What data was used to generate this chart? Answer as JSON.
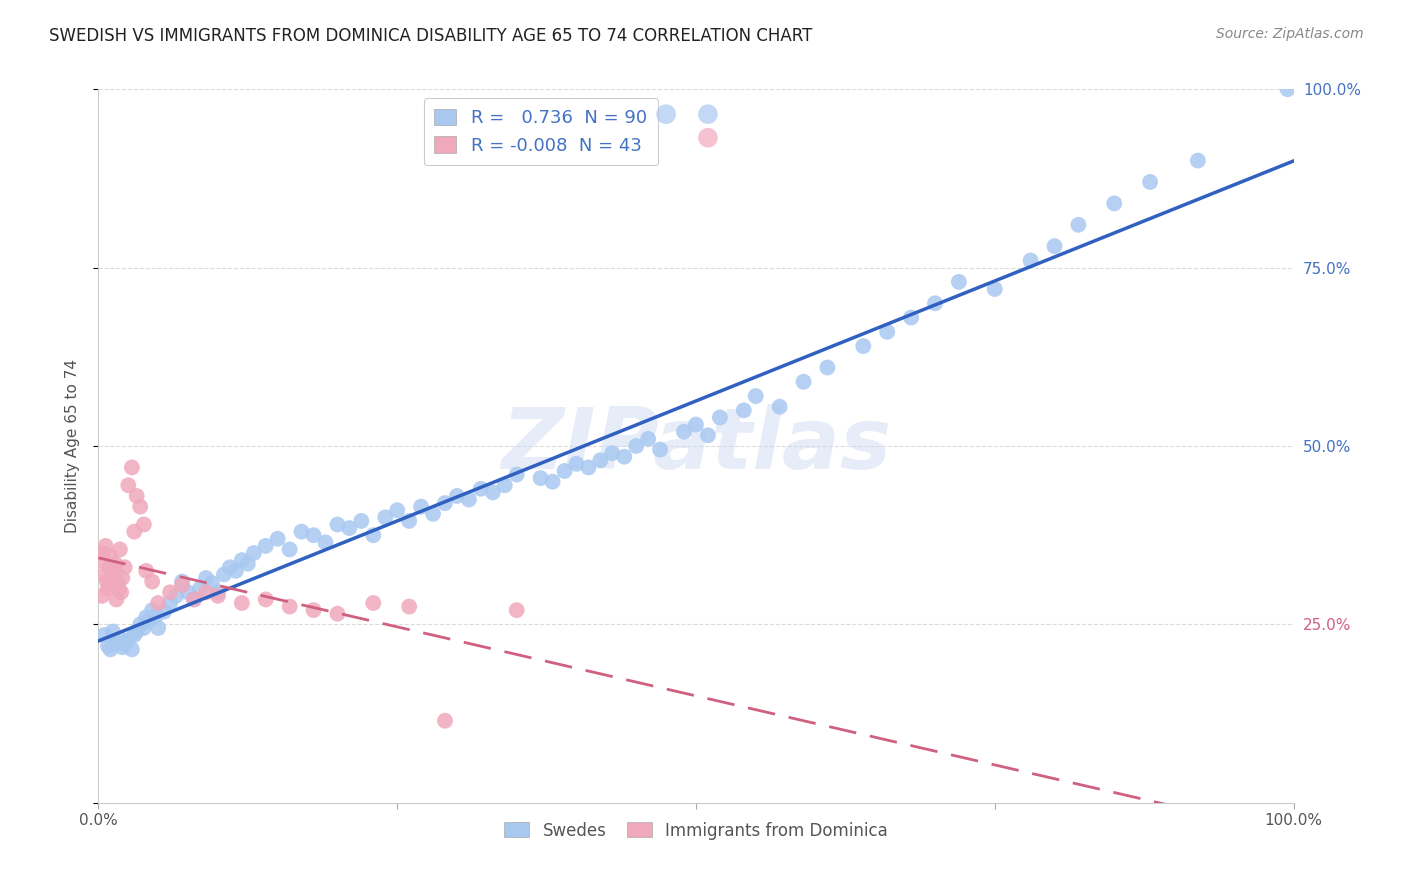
{
  "title": "SWEDISH VS IMMIGRANTS FROM DOMINICA DISABILITY AGE 65 TO 74 CORRELATION CHART",
  "source": "Source: ZipAtlas.com",
  "ylabel": "Disability Age 65 to 74",
  "xlim": [
    0,
    1.0
  ],
  "ylim": [
    0,
    1.0
  ],
  "watermark": "ZIPatlas",
  "swedes_color": "#a8c8f0",
  "dominica_color": "#f0a8bc",
  "swedes_line_color": "#3060c0",
  "dominica_line_color": "#d06080",
  "swedes_R": 0.736,
  "swedes_N": 90,
  "dominica_R": -0.008,
  "dominica_N": 43,
  "background_color": "#ffffff",
  "grid_color": "#cccccc",
  "title_color": "#333333",
  "right_tick_color_blue": "#4472c4",
  "right_tick_color_pink": "#d06080",
  "swedes_x": [
    0.005,
    0.008,
    0.01,
    0.012,
    0.015,
    0.018,
    0.02,
    0.022,
    0.025,
    0.028,
    0.03,
    0.032,
    0.035,
    0.038,
    0.04,
    0.042,
    0.045,
    0.048,
    0.05,
    0.055,
    0.06,
    0.065,
    0.07,
    0.075,
    0.08,
    0.085,
    0.09,
    0.095,
    0.1,
    0.105,
    0.11,
    0.115,
    0.12,
    0.125,
    0.13,
    0.14,
    0.15,
    0.16,
    0.17,
    0.18,
    0.19,
    0.2,
    0.21,
    0.22,
    0.23,
    0.24,
    0.25,
    0.26,
    0.27,
    0.28,
    0.29,
    0.3,
    0.31,
    0.32,
    0.33,
    0.34,
    0.35,
    0.37,
    0.38,
    0.39,
    0.4,
    0.41,
    0.42,
    0.43,
    0.44,
    0.45,
    0.46,
    0.47,
    0.49,
    0.5,
    0.51,
    0.52,
    0.54,
    0.55,
    0.57,
    0.59,
    0.61,
    0.64,
    0.66,
    0.68,
    0.7,
    0.72,
    0.75,
    0.78,
    0.8,
    0.82,
    0.85,
    0.88,
    0.92,
    0.995
  ],
  "swedes_y": [
    0.235,
    0.22,
    0.215,
    0.24,
    0.225,
    0.23,
    0.218,
    0.222,
    0.228,
    0.215,
    0.235,
    0.24,
    0.25,
    0.245,
    0.26,
    0.255,
    0.27,
    0.262,
    0.245,
    0.268,
    0.28,
    0.29,
    0.31,
    0.295,
    0.285,
    0.3,
    0.315,
    0.308,
    0.295,
    0.32,
    0.33,
    0.325,
    0.34,
    0.335,
    0.35,
    0.36,
    0.37,
    0.355,
    0.38,
    0.375,
    0.365,
    0.39,
    0.385,
    0.395,
    0.375,
    0.4,
    0.41,
    0.395,
    0.415,
    0.405,
    0.42,
    0.43,
    0.425,
    0.44,
    0.435,
    0.445,
    0.46,
    0.455,
    0.45,
    0.465,
    0.475,
    0.47,
    0.48,
    0.49,
    0.485,
    0.5,
    0.51,
    0.495,
    0.52,
    0.53,
    0.515,
    0.54,
    0.55,
    0.57,
    0.555,
    0.59,
    0.61,
    0.64,
    0.66,
    0.68,
    0.7,
    0.73,
    0.72,
    0.76,
    0.78,
    0.81,
    0.84,
    0.87,
    0.9,
    1.0
  ],
  "dominica_x": [
    0.002,
    0.003,
    0.004,
    0.005,
    0.006,
    0.007,
    0.008,
    0.009,
    0.01,
    0.011,
    0.012,
    0.013,
    0.014,
    0.015,
    0.016,
    0.017,
    0.018,
    0.019,
    0.02,
    0.022,
    0.025,
    0.028,
    0.03,
    0.032,
    0.035,
    0.038,
    0.04,
    0.045,
    0.05,
    0.06,
    0.07,
    0.08,
    0.09,
    0.1,
    0.12,
    0.14,
    0.16,
    0.18,
    0.2,
    0.23,
    0.26,
    0.29,
    0.35
  ],
  "dominica_y": [
    0.34,
    0.29,
    0.35,
    0.32,
    0.36,
    0.31,
    0.3,
    0.33,
    0.345,
    0.315,
    0.305,
    0.325,
    0.335,
    0.285,
    0.31,
    0.3,
    0.355,
    0.295,
    0.315,
    0.33,
    0.445,
    0.47,
    0.38,
    0.43,
    0.415,
    0.39,
    0.325,
    0.31,
    0.28,
    0.295,
    0.305,
    0.285,
    0.295,
    0.29,
    0.28,
    0.285,
    0.275,
    0.27,
    0.265,
    0.28,
    0.275,
    0.115,
    0.27
  ]
}
